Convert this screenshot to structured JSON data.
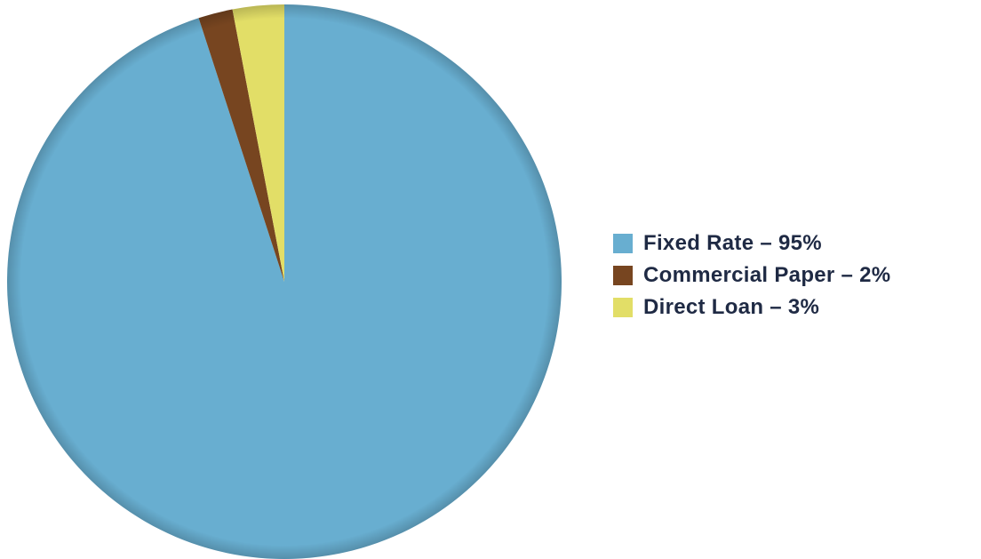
{
  "chart_data": {
    "type": "pie",
    "title": "",
    "start_angle_deg": 0,
    "direction": "clockwise",
    "slices": [
      {
        "label": "Fixed Rate",
        "value": 95,
        "color": "#68aed0",
        "legend_text": "Fixed Rate – 95%"
      },
      {
        "label": "Commercial Paper",
        "value": 2,
        "color": "#774520",
        "legend_text": "Commercial Paper – 2%"
      },
      {
        "label": "Direct Loan",
        "value": 3,
        "color": "#e2de67",
        "legend_text": "Direct Loan – 3%"
      }
    ],
    "legend_position": "right"
  }
}
